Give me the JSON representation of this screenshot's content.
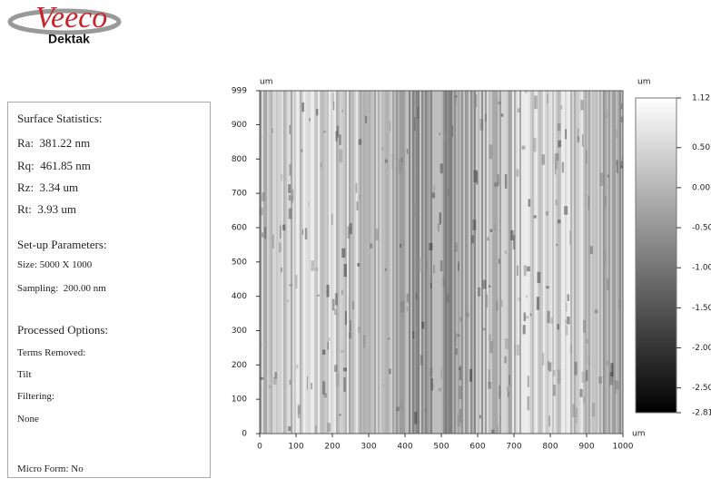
{
  "logo": {
    "brand": "Veeco",
    "product": "Dektak"
  },
  "stats": {
    "surface_statistics": {
      "title": "Surface Statistics:",
      "items": [
        "Ra:  381.22 nm",
        "Rq:  461.85 nm",
        "Rz:  3.34 um",
        "Rt:  3.93 um"
      ]
    },
    "setup_parameters": {
      "title": "Set-up Parameters:",
      "items": [
        "Size: 5000 X 1000",
        "Sampling:  200.00 nm"
      ]
    },
    "processed_options": {
      "title": "Processed Options:",
      "items": [
        "Terms Removed:",
        "Tilt",
        "Filtering:",
        "None"
      ]
    },
    "micro_form": "Micro Form: No"
  },
  "chart_data": {
    "type": "surface-map",
    "x_unit": "um",
    "y_unit": "um",
    "colorbar_unit": "um",
    "xlim": [
      0,
      1000
    ],
    "xticks": [
      0,
      100,
      200,
      300,
      400,
      500,
      600,
      700,
      800,
      900,
      1000
    ],
    "ylim": [
      0,
      999
    ],
    "yticks": [
      0,
      100,
      200,
      300,
      400,
      500,
      600,
      700,
      800,
      900,
      999
    ],
    "colorbar_lim": [
      -2.81,
      1.12
    ],
    "colorbar_ticks": [
      {
        "value": 1.12,
        "label": "1.12"
      },
      {
        "value": 0.5,
        "label": "0.50"
      },
      {
        "value": 0,
        "label": "0.00"
      },
      {
        "value": -0.5,
        "label": "-0.50"
      },
      {
        "value": -1,
        "label": "-1.00"
      },
      {
        "value": -1.5,
        "label": "-1.50"
      },
      {
        "value": -2,
        "label": "-2.00"
      },
      {
        "value": -2.5,
        "label": "-2.50"
      },
      {
        "value": -2.81,
        "label": "-2.81"
      }
    ],
    "colormap": [
      "#000000",
      "#ffffff"
    ]
  }
}
